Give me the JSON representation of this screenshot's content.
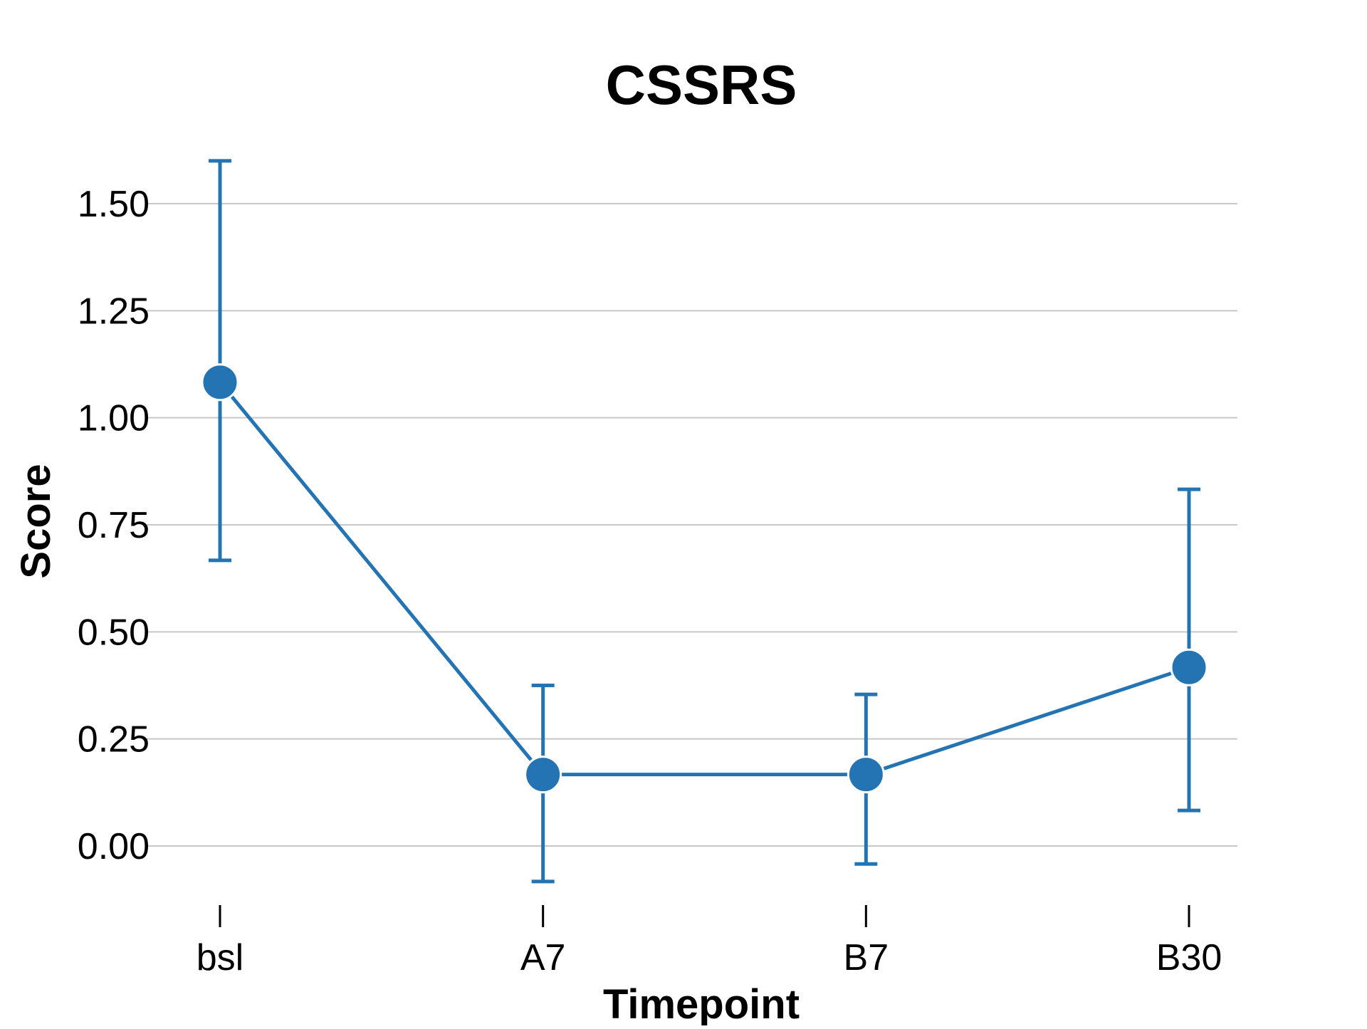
{
  "chart_data": {
    "type": "line",
    "title": "CSSRS",
    "xlabel": "Timepoint",
    "ylabel": "Score",
    "categories": [
      "bsl",
      "A7",
      "B7",
      "B30"
    ],
    "values": [
      1.083,
      0.167,
      0.167,
      0.417
    ],
    "error_low": [
      0.667,
      -0.083,
      -0.042,
      0.083
    ],
    "error_high": [
      1.6,
      0.375,
      0.354,
      0.833
    ],
    "yticks": [
      "0.00",
      "0.25",
      "0.50",
      "0.75",
      "1.00",
      "1.25",
      "1.50"
    ],
    "ytick_values": [
      0,
      0.25,
      0.5,
      0.75,
      1.0,
      1.25,
      1.5
    ],
    "ylim": [
      -0.1,
      1.6
    ],
    "grid": "horizontal",
    "legend": "none",
    "colors": {
      "series": "#2474b4",
      "grid": "#c8c8c8",
      "text": "#000000"
    }
  }
}
